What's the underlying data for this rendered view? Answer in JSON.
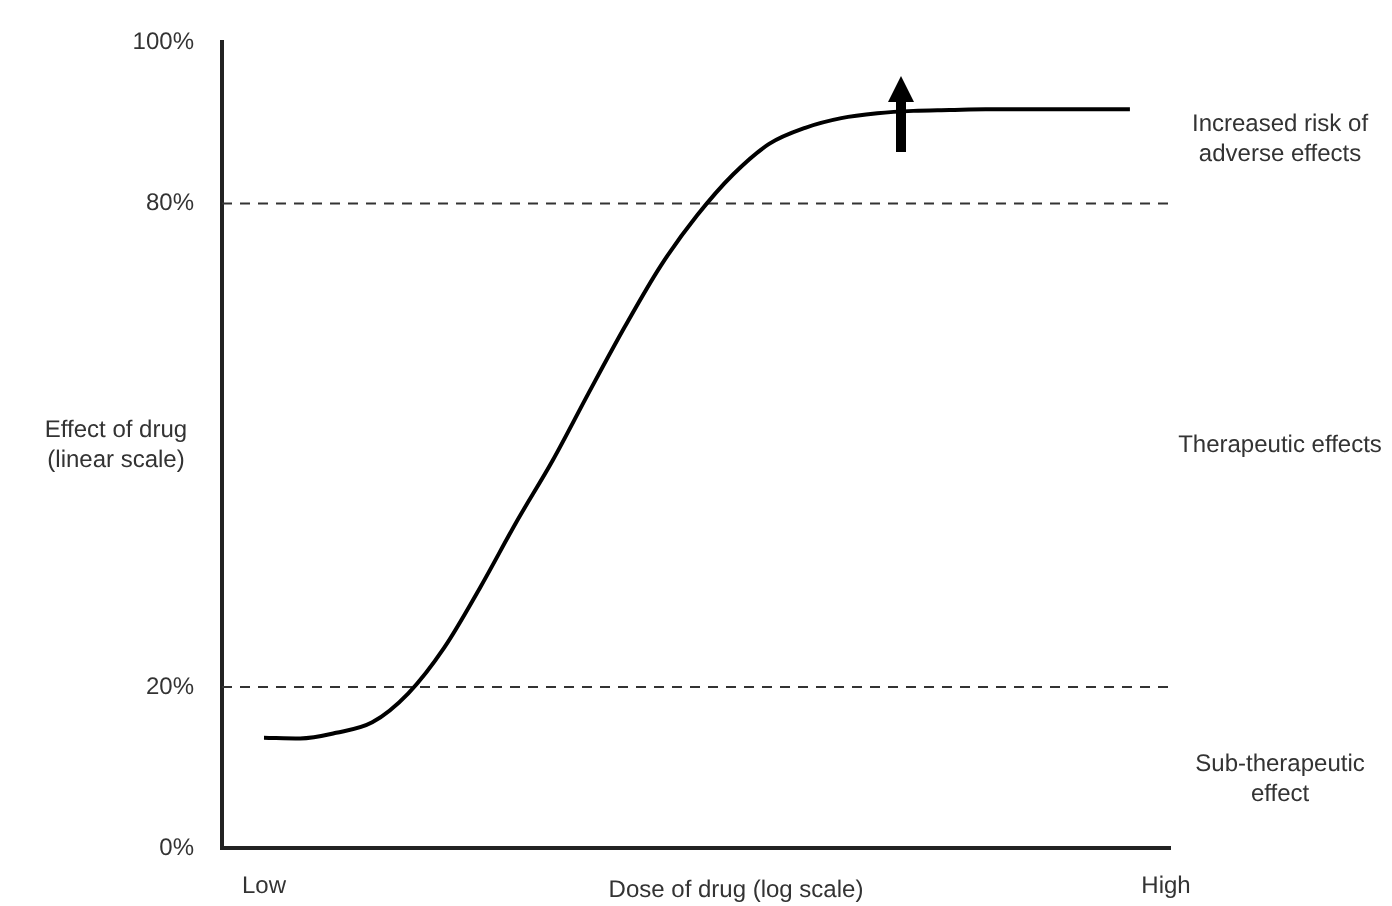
{
  "chart_data": {
    "type": "line",
    "xlabel": "Dose of drug (log scale)",
    "ylabel": "Effect of drug (linear scale)",
    "categories": [
      "Low",
      null,
      null,
      null,
      null,
      null,
      null,
      null,
      null,
      null,
      null,
      null,
      null,
      null,
      null,
      null,
      null,
      null,
      null,
      null,
      null,
      null,
      null,
      null,
      null,
      "High"
    ],
    "series": [
      {
        "color": "#000000",
        "values": [
          13.7,
          13.6,
          14.3,
          15.6,
          19.2,
          24.9,
          32.4,
          40.5,
          48.1,
          56.5,
          64.7,
          72.3,
          78.5,
          83.6,
          87.4,
          89.4,
          90.6,
          91.2,
          91.5,
          91.6,
          91.7,
          91.7,
          91.7,
          91.7,
          91.7,
          null
        ]
      }
    ],
    "ylim": [
      0,
      100
    ],
    "yticks": [
      {
        "value": 0,
        "label": "0%"
      },
      {
        "value": 20,
        "label": "20%"
      },
      {
        "value": 80,
        "label": "80%"
      },
      {
        "value": 100,
        "label": "100%"
      }
    ],
    "ref_lines": [
      {
        "axis": "y",
        "value": 20,
        "color": "#333333",
        "line_style": "dashed"
      },
      {
        "axis": "y",
        "value": 80,
        "color": "#333333",
        "line_style": "dashed"
      }
    ],
    "annotations": [
      "Increased risk of adverse effects",
      "Therapeutic effects",
      "Sub-therapeutic effect"
    ],
    "grid": false,
    "legend": false,
    "marker": "none",
    "line_style": "solid"
  }
}
